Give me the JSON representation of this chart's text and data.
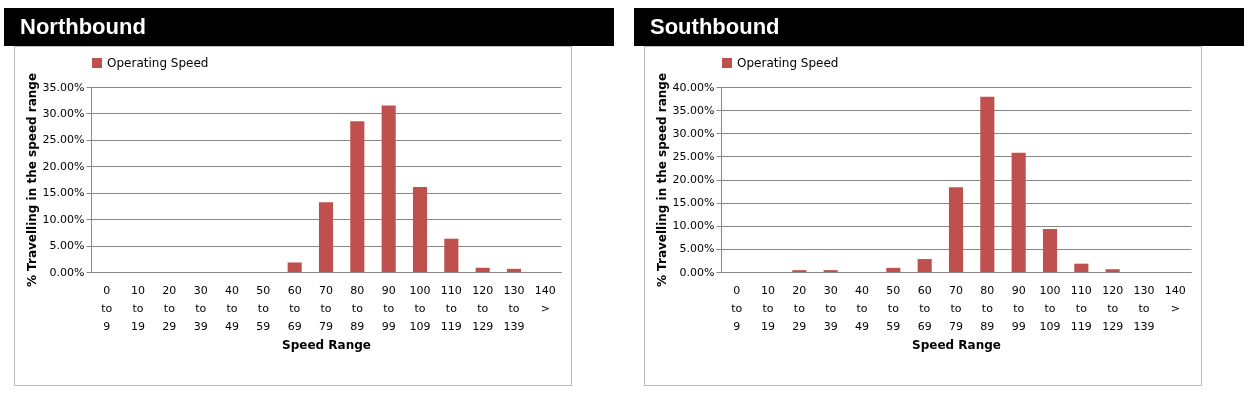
{
  "chart_data": [
    {
      "type": "bar",
      "title": "Northbound",
      "categories": [
        "0 to 9",
        "10 to 19",
        "20 to 29",
        "30 to 39",
        "40 to 49",
        "50 to 59",
        "60 to 69",
        "70 to 79",
        "80 to 89",
        "90 to 99",
        "100 to 109",
        "110 to 119",
        "120 to 129",
        "130 to 139",
        "140 >"
      ],
      "series": [
        {
          "name": "Operating Speed",
          "color": "#c0504d",
          "values": [
            0,
            0,
            0,
            0,
            0,
            0,
            1.8,
            13.2,
            28.5,
            31.5,
            16.1,
            6.3,
            0.8,
            0.6,
            0
          ]
        }
      ],
      "xlabel": "Speed Range",
      "ylabel": "% Travelling  in the speed range",
      "ylim": [
        0,
        35
      ],
      "yticks": [
        {
          "value": 0,
          "label": "0.00%"
        },
        {
          "value": 5,
          "label": "5.00%"
        },
        {
          "value": 10,
          "label": "10.00%"
        },
        {
          "value": 15,
          "label": "15.00%"
        },
        {
          "value": 20,
          "label": "20.00%"
        },
        {
          "value": 25,
          "label": "25.00%"
        },
        {
          "value": 30,
          "label": "30.00%"
        },
        {
          "value": 35,
          "label": "35.00%"
        }
      ],
      "grid": "y",
      "legend": "top"
    },
    {
      "type": "bar",
      "title": "Southbound",
      "categories": [
        "0 to 9",
        "10 to 19",
        "20 to 29",
        "30 to 39",
        "40 to 49",
        "50 to 59",
        "60 to 69",
        "70 to 79",
        "80 to 89",
        "90 to 99",
        "100 to 109",
        "110 to 119",
        "120 to 129",
        "130 to 139",
        "140 >"
      ],
      "series": [
        {
          "name": "Operating Speed",
          "color": "#c0504d",
          "values": [
            0,
            0,
            0.4,
            0.4,
            0,
            0.9,
            2.8,
            18.3,
            37.9,
            25.8,
            9.3,
            1.8,
            0.6,
            0,
            0
          ]
        }
      ],
      "xlabel": "Speed Range",
      "ylabel": "% Travelling  in the speed range",
      "ylim": [
        0,
        40
      ],
      "yticks": [
        {
          "value": 0,
          "label": "0.00%"
        },
        {
          "value": 5,
          "label": "5.00%"
        },
        {
          "value": 10,
          "label": "10.00%"
        },
        {
          "value": 15,
          "label": "15.00%"
        },
        {
          "value": 20,
          "label": "20.00%"
        },
        {
          "value": 25,
          "label": "25.00%"
        },
        {
          "value": 30,
          "label": "30.00%"
        },
        {
          "value": 35,
          "label": "35.00%"
        },
        {
          "value": 40,
          "label": "40.00%"
        }
      ],
      "grid": "y",
      "legend": "top"
    }
  ]
}
